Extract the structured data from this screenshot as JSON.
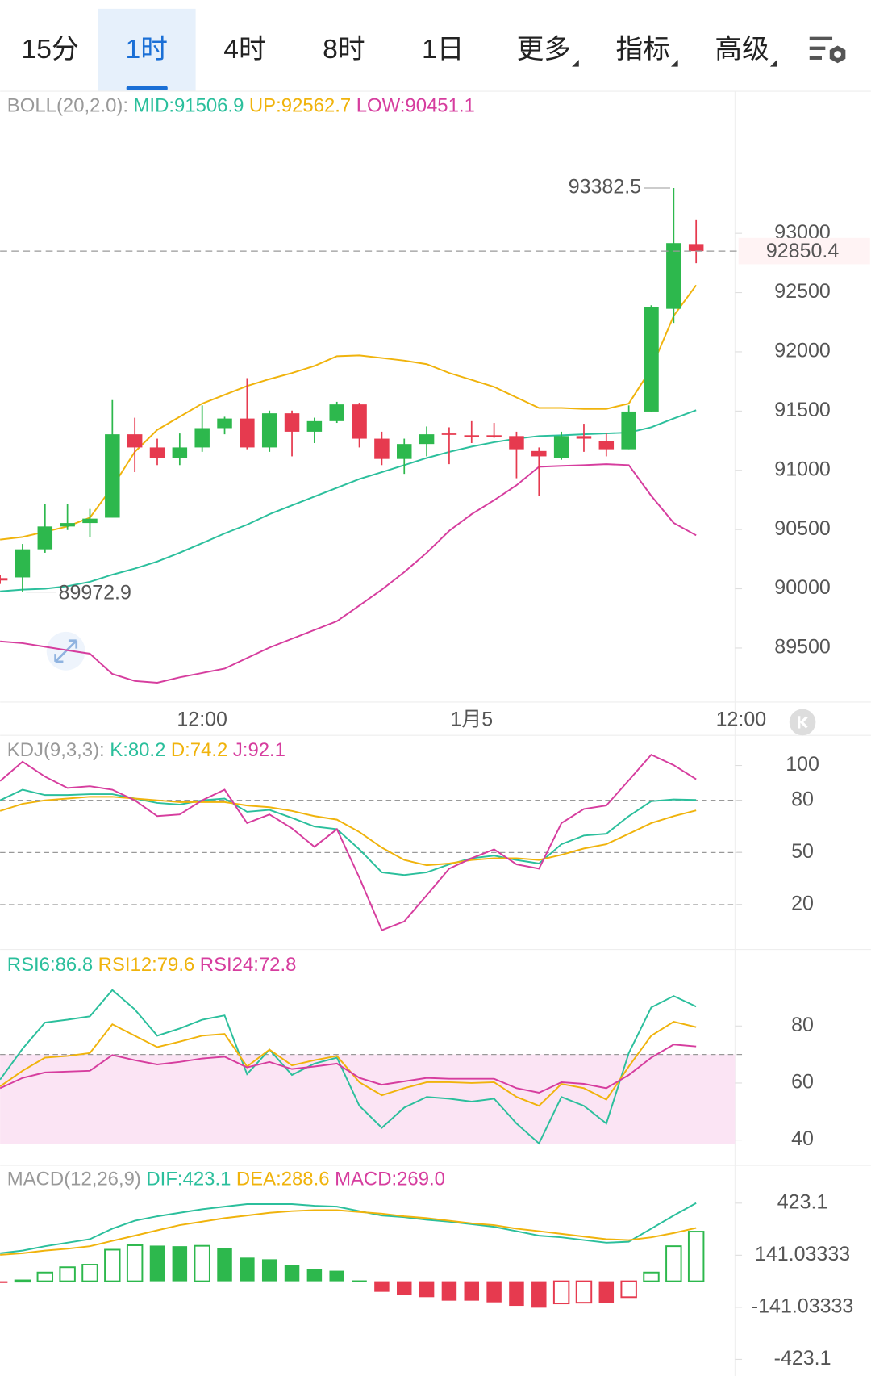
{
  "tabs": {
    "items": [
      "15分",
      "1时",
      "4时",
      "8时",
      "1日",
      "更多",
      "指标",
      "高级"
    ],
    "selected": 1,
    "has_menu": [
      false,
      false,
      false,
      false,
      false,
      true,
      true,
      true
    ]
  },
  "chart_data": [
    {
      "type": "candlestick",
      "title": "BOLL(20,2.0):",
      "up_color": "#2db84d",
      "down_color": "#e63a4f",
      "open": [
        90090,
        90096,
        90333,
        90526,
        90555,
        90600,
        91304,
        91193,
        91104,
        91193,
        91356,
        91437,
        91193,
        91481,
        91326,
        91415,
        91556,
        91267,
        91096,
        91222,
        91311,
        91296,
        91296,
        91289,
        91163,
        91104,
        91289,
        91244,
        91178,
        91496,
        92363,
        92910
      ],
      "high": [
        90120,
        90378,
        90718,
        90718,
        90674,
        91593,
        91444,
        91267,
        91311,
        91548,
        91452,
        91778,
        91504,
        91504,
        91444,
        91578,
        91570,
        91326,
        91267,
        91370,
        91363,
        91415,
        91400,
        91326,
        91193,
        91326,
        91393,
        91311,
        91548,
        92393,
        93382.5,
        93118
      ],
      "low": [
        90040,
        89972.9,
        90304,
        90496,
        90437,
        90600,
        90985,
        91044,
        91044,
        91156,
        91304,
        91178,
        91156,
        91118,
        91230,
        91400,
        91193,
        91044,
        90970,
        91118,
        91052,
        91230,
        91274,
        90933,
        90785,
        91089,
        91156,
        91118,
        91178,
        91489,
        92244,
        92748
      ],
      "close": [
        90070,
        90333,
        90526,
        90555,
        90592,
        91304,
        91193,
        91104,
        91193,
        91356,
        91437,
        91193,
        91481,
        91326,
        91415,
        91556,
        91267,
        91096,
        91222,
        91304,
        91300,
        91293,
        91292,
        91178,
        91118,
        91289,
        91267,
        91178,
        91496,
        92378,
        92918,
        92850.4
      ],
      "series": [
        {
          "name": "MID:91506.9",
          "color": "#2bbf9c",
          "values": [
            89978,
            89993,
            90000,
            90022,
            90059,
            90119,
            90170,
            90230,
            90304,
            90385,
            90467,
            90541,
            90630,
            90704,
            90778,
            90852,
            90926,
            90985,
            91044,
            91104,
            91156,
            91200,
            91237,
            91267,
            91289,
            91296,
            91304,
            91311,
            91318,
            91363,
            91437,
            91506.9
          ]
        },
        {
          "name": "UP:92562.7",
          "color": "#f0b30c",
          "values": [
            90415,
            90437,
            90481,
            90526,
            90600,
            90859,
            91156,
            91341,
            91452,
            91563,
            91637,
            91711,
            91770,
            91822,
            91881,
            91963,
            91970,
            91948,
            91926,
            91896,
            91822,
            91763,
            91704,
            91615,
            91526,
            91526,
            91518,
            91518,
            91563,
            91859,
            92304,
            92562.7
          ]
        },
        {
          "name": "LOW:90451.1",
          "color": "#d63d9e",
          "values": [
            89556,
            89541,
            89511,
            89481,
            89452,
            89281,
            89222,
            89207,
            89252,
            89289,
            89326,
            89415,
            89504,
            89578,
            89652,
            89726,
            89859,
            89993,
            90141,
            90304,
            90489,
            90630,
            90748,
            90874,
            91030,
            91037,
            91044,
            91052,
            91044,
            90785,
            90556,
            90451.1
          ]
        }
      ],
      "xlim": [
        0,
        32.73
      ],
      "xticks": [
        {
          "value": 9,
          "label": "12:00"
        },
        {
          "value": 21,
          "label": "1月5"
        },
        {
          "value": 33,
          "label": "12:00"
        }
      ],
      "ylim": [
        89044,
        94192
      ],
      "yticks": [
        89500,
        90000,
        90500,
        91000,
        91500,
        92000,
        92500,
        93000
      ]
    },
    {
      "type": "line",
      "title": "KDJ(9,3,3):",
      "series": [
        {
          "name": "K:80.2",
          "color": "#2bbf9c",
          "values": [
            80,
            86.1,
            83,
            83,
            83.5,
            83.5,
            81,
            78.5,
            77.5,
            80,
            81,
            73.4,
            74.5,
            69.9,
            64.9,
            63.4,
            51.8,
            38.6,
            37.1,
            38.6,
            43.2,
            46.7,
            48.2,
            45.7,
            43.7,
            54.8,
            59.8,
            60.8,
            70.9,
            79.5,
            80.5,
            80.2
          ]
        },
        {
          "name": "D:74.2",
          "color": "#f0b30c",
          "values": [
            73.9,
            78,
            80,
            81,
            82,
            82,
            81,
            80,
            79,
            79,
            79,
            77,
            76,
            73.9,
            70.9,
            68.9,
            61.8,
            52.8,
            45.7,
            42.7,
            43.7,
            45.7,
            46.7,
            46.7,
            45.7,
            48.7,
            52.3,
            54.8,
            60.8,
            66.9,
            70.9,
            74.2
          ]
        },
        {
          "name": "J:92.1",
          "color": "#d63d9e",
          "values": [
            91.1,
            102.2,
            93.6,
            87.1,
            88.1,
            86.1,
            80,
            70.9,
            71.9,
            80,
            86.1,
            66.9,
            71.9,
            63.9,
            53.3,
            63.4,
            35.6,
            5.4,
            10.4,
            25.5,
            40.7,
            46.7,
            51.8,
            43.2,
            40.7,
            66.9,
            75,
            77,
            91.5,
            106.2,
            100.2,
            92.1
          ]
        }
      ],
      "xlim": [
        0,
        32.73
      ],
      "ylim": [
        -4.7,
        117.3
      ],
      "yticks": [
        100,
        80,
        50,
        20
      ],
      "reference_lines": [
        80,
        50,
        20
      ]
    },
    {
      "type": "line",
      "series": [
        {
          "name": "RSI6:86.8",
          "color": "#2bbf9c",
          "values": [
            61.2,
            72,
            81.2,
            82.2,
            83.4,
            92.6,
            85.8,
            76.6,
            79.1,
            82.2,
            83.7,
            63.1,
            71.7,
            62.8,
            66.8,
            68.9,
            52,
            44.3,
            51.4,
            55.1,
            54.5,
            53.5,
            54.5,
            45.8,
            38.8,
            55.1,
            52,
            45.8,
            70.5,
            86.5,
            90.5,
            86.8
          ]
        },
        {
          "name": "RSI12:79.6",
          "color": "#f0b30c",
          "values": [
            58.8,
            64.3,
            68.9,
            69.5,
            70.5,
            80.6,
            76.6,
            72.6,
            74.5,
            76.6,
            77.2,
            65.8,
            71.7,
            66.2,
            68,
            69.5,
            60.3,
            55.7,
            58.2,
            60.3,
            60.3,
            60,
            60.3,
            55.1,
            52,
            59.7,
            58.2,
            54.2,
            65.8,
            76.6,
            81.5,
            79.6
          ]
        },
        {
          "name": "RSI24:72.8",
          "color": "#d63d9e",
          "values": [
            58.2,
            61.8,
            63.7,
            64,
            64.3,
            69.8,
            68,
            66.5,
            67.4,
            68.6,
            69.2,
            65.5,
            67.4,
            64.9,
            65.8,
            66.8,
            61.8,
            59.4,
            60.6,
            61.8,
            61.5,
            61.5,
            61.5,
            58.2,
            56.6,
            60.3,
            59.7,
            58.2,
            62.8,
            68.9,
            73.5,
            72.8
          ]
        }
      ],
      "xlim": [
        0,
        32.73
      ],
      "ylim": [
        38.5,
        106.5
      ],
      "yticks": [
        80,
        60,
        40
      ],
      "reference_lines": [
        70
      ],
      "shade_color": "#fbe4f4"
    },
    {
      "type": "bar",
      "title": "MACD(12,26,9)",
      "name": "MACD:269.0",
      "name_color": "#d63d9e",
      "up_color": "#2db84d",
      "down_color": "#e63a4f",
      "values": [
        -9.5,
        4.8,
        47.5,
        76,
        90,
        171,
        195,
        193,
        190,
        192,
        181,
        128,
        119,
        86,
        67,
        57,
        4.8,
        -57,
        -76,
        -86,
        -105,
        -105,
        -114,
        -133,
        -143,
        -120,
        -116,
        -116,
        -86,
        47.5,
        190,
        269
      ],
      "series": [
        {
          "name": "DIF:423.1",
          "color": "#2bbf9c",
          "values": [
            152,
            166,
            190,
            209,
            228,
            285,
            328,
            352,
            371,
            390,
            404,
            418,
            418,
            418,
            409,
            404,
            380,
            356,
            347,
            333,
            323,
            309,
            295,
            271,
            247,
            238,
            223,
            209,
            214,
            285,
            356,
            423.1
          ]
        },
        {
          "name": "DEA:288.6",
          "color": "#f0b30c",
          "values": [
            143,
            152,
            166,
            176,
            190,
            219,
            247,
            276,
            304,
            323,
            342,
            356,
            371,
            380,
            385,
            385,
            375,
            366,
            352,
            342,
            328,
            314,
            304,
            285,
            271,
            257,
            242,
            228,
            223,
            238,
            261,
            288.6
          ]
        }
      ],
      "xlim": [
        0,
        32.73
      ],
      "ylim": [
        -513,
        618
      ],
      "yticks": [
        423.1,
        141.03333,
        -141.03333,
        -423.1
      ]
    }
  ]
}
